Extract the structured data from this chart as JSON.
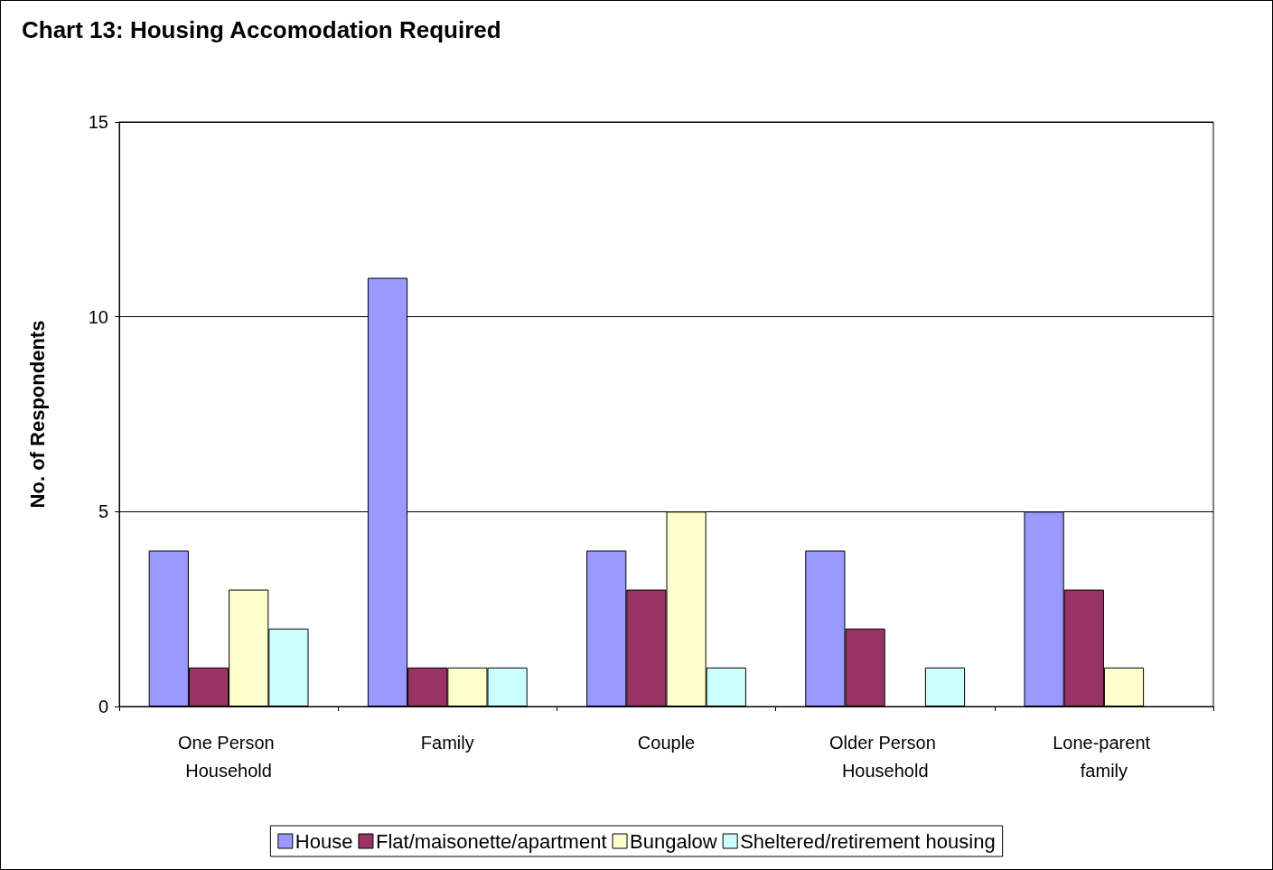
{
  "chart_data": {
    "type": "bar",
    "title": "Chart 13: Housing Accomodation Required",
    "ylabel": "No. of Respondents",
    "categories": [
      "One Person Household",
      "Family",
      "Couple",
      "Older Person Household",
      "Lone-parent family"
    ],
    "series": [
      {
        "name": "House",
        "color": "#9999ff",
        "values": [
          4,
          11,
          4,
          4,
          5
        ]
      },
      {
        "name": "Flat/maisonette/apartment",
        "color": "#993366",
        "values": [
          1,
          1,
          3,
          2,
          3
        ]
      },
      {
        "name": "Bungalow",
        "color": "#ffffcc",
        "values": [
          3,
          1,
          5,
          null,
          1
        ]
      },
      {
        "name": "Sheltered/retirement housing",
        "color": "#ccffff",
        "values": [
          2,
          1,
          1,
          1,
          null
        ]
      }
    ],
    "ylim": [
      0,
      15
    ],
    "yticks": [
      0,
      5,
      10,
      15
    ],
    "grid": "y",
    "legend": "bottom"
  }
}
